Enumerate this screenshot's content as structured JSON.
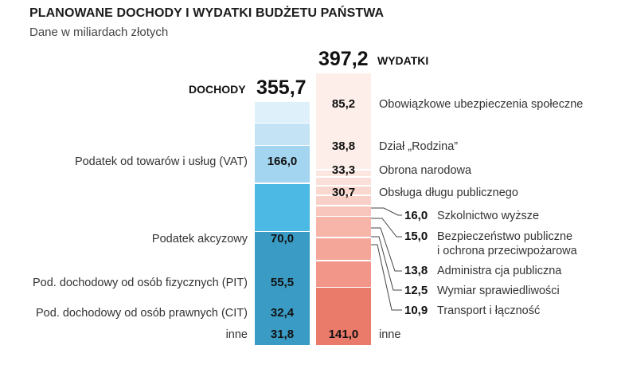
{
  "chart_data": {
    "type": "bar",
    "title": "PLANOWANE DOCHODY I WYDATKI BUDŻETU PAŃSTWA",
    "subtitle": "Dane w miliardach złotych",
    "series": [
      {
        "name": "DOCHODY",
        "total": "355,7",
        "items": [
          {
            "label": "Podatek od towarów i usług (VAT)",
            "value": "166,0",
            "color": "#3a9cc5"
          },
          {
            "label": "Podatek akcyzowy",
            "value": "70,0",
            "color": "#4cb8e4"
          },
          {
            "label": "Pod. dochodowy od osób fizycznych (PIT)",
            "value": "55,5",
            "color": "#a3d4f0"
          },
          {
            "label": "Pod. dochodowy od osób prawnych (CIT)",
            "value": "32,4",
            "color": "#c4e4f6"
          },
          {
            "label": "inne",
            "value": "31,8",
            "color": "#def0fa"
          }
        ]
      },
      {
        "name": "WYDATKI",
        "total": "397,2",
        "items": [
          {
            "label": "Obowiązkowe ubezpieczenia społeczne",
            "value": "85,2",
            "color": "#ea7a6a"
          },
          {
            "label": "Dział „Rodzina”",
            "value": "38,8",
            "color": "#f2968a"
          },
          {
            "label": "Obrona narodowa",
            "value": "33,3",
            "color": "#f4a698"
          },
          {
            "label": "Obsługa długu publicznego",
            "value": "30,7",
            "color": "#f6b5a8"
          },
          {
            "label": "Szkolnictwo wyższe",
            "value": "16,0",
            "color": "#f8c6bc"
          },
          {
            "label": "Bezpieczeństwo publiczne\ni ochrona przeciwpożarowa",
            "value": "15,0",
            "color": "#f9d0c7"
          },
          {
            "label": "Administra cja publiczna",
            "value": "13,8",
            "color": "#fad8d0"
          },
          {
            "label": "Wymiar sprawiedliwości",
            "value": "12,5",
            "color": "#fbe0d9"
          },
          {
            "label": "Transport i łączność",
            "value": "10,9",
            "color": "#fce6e0"
          },
          {
            "label": "inne",
            "value": "141,0",
            "color": "#fdeee9"
          }
        ]
      }
    ]
  }
}
